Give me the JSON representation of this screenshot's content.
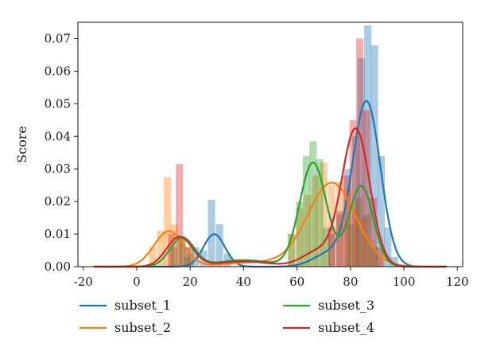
{
  "chart_data": {
    "type": "histogram_kde",
    "ylabel": "Score",
    "xlabel": "",
    "xlim": [
      -22,
      122
    ],
    "ylim": [
      0,
      0.075
    ],
    "xticks": [
      -20,
      0,
      20,
      40,
      60,
      80,
      100,
      120
    ],
    "yticks": [
      0.0,
      0.01,
      0.02,
      0.03,
      0.04,
      0.05,
      0.06,
      0.07
    ],
    "ytick_labels": [
      "0.00",
      "0.01",
      "0.02",
      "0.03",
      "0.04",
      "0.05",
      "0.06",
      "0.07"
    ],
    "grid": false,
    "legend_position": "below",
    "bin_width": 2.7,
    "series": [
      {
        "name": "subset_1",
        "color": "#1f77b4",
        "kde_components": [
          {
            "mu": 29,
            "sigma": 4.0,
            "w": 0.1
          },
          {
            "mu": 86,
            "sigma": 5.2,
            "w": 0.66
          },
          {
            "mu": 72,
            "sigma": 6.0,
            "w": 0.06
          }
        ],
        "hist": [
          [
            19,
            0.003
          ],
          [
            22,
            0.006
          ],
          [
            25,
            0.005
          ],
          [
            28,
            0.0205
          ],
          [
            31,
            0.013
          ],
          [
            34,
            0.004
          ],
          [
            73,
            0.01
          ],
          [
            76,
            0.016
          ],
          [
            79,
            0.03
          ],
          [
            82,
            0.04
          ],
          [
            84,
            0.064
          ],
          [
            86.5,
            0.074
          ],
          [
            89,
            0.068
          ],
          [
            91.5,
            0.034
          ],
          [
            94,
            0.012
          ],
          [
            96.5,
            0.003
          ]
        ]
      },
      {
        "name": "subset_2",
        "color": "#ff7f0e",
        "kde_components": [
          {
            "mu": 12,
            "sigma": 5.5,
            "w": 0.15
          },
          {
            "mu": 73,
            "sigma": 9.0,
            "w": 0.58
          },
          {
            "mu": 45,
            "sigma": 12.0,
            "w": 0.04
          }
        ],
        "hist": [
          [
            6,
            0.006
          ],
          [
            9,
            0.011
          ],
          [
            11.5,
            0.0275
          ],
          [
            14,
            0.013
          ],
          [
            17,
            0.009
          ],
          [
            20,
            0.004
          ],
          [
            58,
            0.01
          ],
          [
            61,
            0.018
          ],
          [
            64,
            0.022
          ],
          [
            67,
            0.028
          ],
          [
            70,
            0.032
          ],
          [
            73,
            0.025
          ],
          [
            76,
            0.026
          ],
          [
            79,
            0.024
          ],
          [
            82,
            0.018
          ],
          [
            85,
            0.015
          ],
          [
            88,
            0.008
          ],
          [
            91,
            0.003
          ]
        ]
      },
      {
        "name": "subset_3",
        "color": "#2ca02c",
        "kde_components": [
          {
            "mu": 17,
            "sigma": 4.5,
            "w": 0.1
          },
          {
            "mu": 66,
            "sigma": 5.0,
            "w": 0.4
          },
          {
            "mu": 84,
            "sigma": 4.5,
            "w": 0.28
          },
          {
            "mu": 40,
            "sigma": 10.0,
            "w": 0.05
          }
        ],
        "hist": [
          [
            14,
            0.006
          ],
          [
            17,
            0.009
          ],
          [
            20,
            0.006
          ],
          [
            58,
            0.01
          ],
          [
            61,
            0.02
          ],
          [
            63.5,
            0.034
          ],
          [
            66,
            0.0385
          ],
          [
            68.5,
            0.033
          ],
          [
            71,
            0.012
          ],
          [
            80,
            0.013
          ],
          [
            83,
            0.021
          ],
          [
            86,
            0.016
          ],
          [
            89,
            0.006
          ]
        ]
      },
      {
        "name": "subset_4",
        "color": "#d62728",
        "kde_components": [
          {
            "mu": 16,
            "sigma": 4.8,
            "w": 0.11
          },
          {
            "mu": 82,
            "sigma": 5.2,
            "w": 0.55
          },
          {
            "mu": 68,
            "sigma": 6.0,
            "w": 0.07
          },
          {
            "mu": 40,
            "sigma": 10.0,
            "w": 0.04
          }
        ],
        "hist": [
          [
            13,
            0.01
          ],
          [
            16,
            0.0315
          ],
          [
            19,
            0.006
          ],
          [
            73,
            0.012
          ],
          [
            76,
            0.017
          ],
          [
            78.5,
            0.028
          ],
          [
            81,
            0.045
          ],
          [
            83.5,
            0.07
          ],
          [
            86,
            0.048
          ],
          [
            88.5,
            0.021
          ],
          [
            91,
            0.006
          ]
        ]
      }
    ]
  }
}
